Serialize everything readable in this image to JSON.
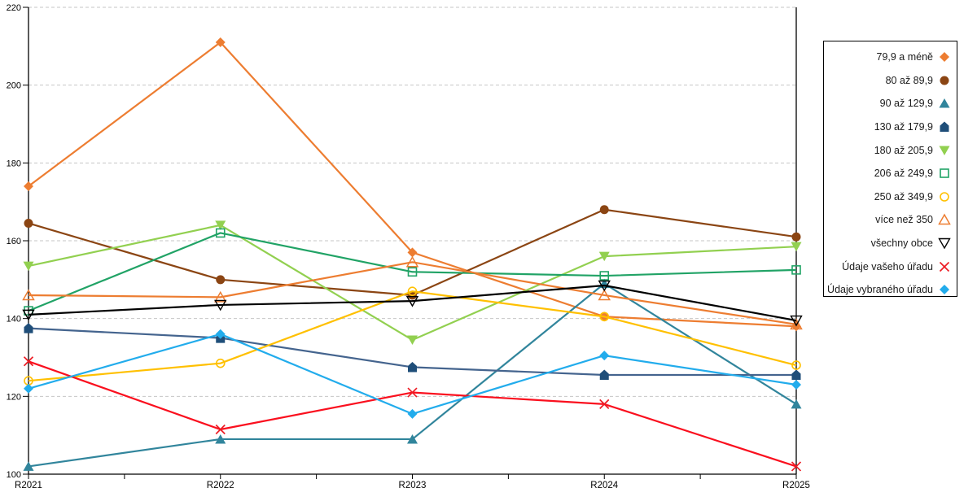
{
  "chart_data": {
    "type": "line",
    "title": "",
    "xlabel": "",
    "ylabel": "",
    "categories": [
      "R2021",
      "R2022",
      "R2023",
      "R2024",
      "R2025"
    ],
    "y_axis": {
      "min": 100,
      "max": 220,
      "step": 20,
      "tick_labels": [
        "100",
        "120",
        "140",
        "160",
        "180",
        "200",
        "220"
      ]
    },
    "grid": {
      "horizontal": true,
      "style": "dashed",
      "color": "#c6c6c6"
    },
    "legend_position": "right",
    "plot_border_color": "#000000",
    "series": [
      {
        "name": "79,9 a méně",
        "marker": "diamond-filled",
        "color": "#ED7D31",
        "values": [
          174,
          211,
          157,
          140.5,
          138
        ]
      },
      {
        "name": "80 až 89,9",
        "marker": "circle-filled",
        "color": "#8B4513",
        "values": [
          164.5,
          150,
          146,
          168,
          161
        ]
      },
      {
        "name": "90 až 129,9",
        "marker": "triangle-up-filled",
        "color": "#31859C",
        "values": [
          102,
          109,
          109,
          149,
          118
        ]
      },
      {
        "name": "130 až 179,9",
        "marker": "pentagon-filled",
        "color": "#1F4E79",
        "line_color": "#44648E",
        "values": [
          137.5,
          135,
          127.5,
          125.5,
          125.5
        ]
      },
      {
        "name": "180 až 205,9",
        "marker": "triangle-down-filled",
        "color": "#92D050",
        "values": [
          153.5,
          164,
          134.5,
          156,
          158.5
        ]
      },
      {
        "name": "206 až 249,9",
        "marker": "square-open",
        "color": "#21A366",
        "values": [
          142,
          162,
          152,
          151,
          152.5
        ]
      },
      {
        "name": "250 až 349,9",
        "marker": "circle-open",
        "color": "#FFC000",
        "values": [
          124,
          128.5,
          147,
          140.5,
          128
        ]
      },
      {
        "name": "více než 350",
        "marker": "triangle-up-open",
        "color": "#ED7D31",
        "values": [
          146,
          145.5,
          154.5,
          146,
          138.5
        ]
      },
      {
        "name": "všechny obce",
        "marker": "triangle-down-open",
        "color": "#000000",
        "values": [
          141,
          143.5,
          144.5,
          148.5,
          139.5
        ]
      },
      {
        "name": "Údaje vašeho úřadu",
        "marker": "x-cross",
        "color": "#ED1C24",
        "line_color": "#FA0F1E",
        "values": [
          129,
          111.5,
          121,
          118,
          102
        ]
      },
      {
        "name": "Údaje vybraného úřadu",
        "marker": "diamond-filled",
        "color": "#22ACEC",
        "values": [
          122,
          136,
          115.5,
          130.5,
          123
        ]
      }
    ]
  },
  "layout_note": ""
}
